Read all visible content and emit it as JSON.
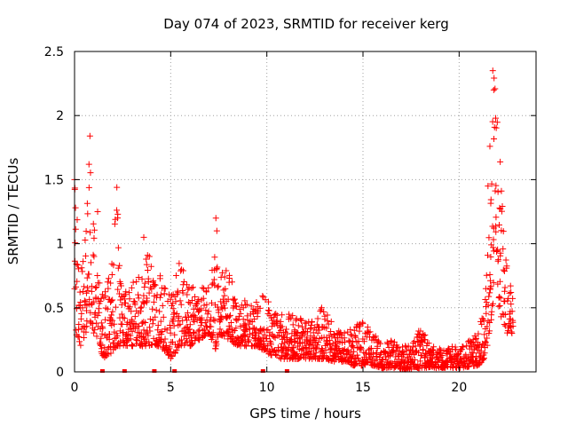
{
  "chart_data": {
    "type": "scatter",
    "title": "Day 074 of 2023, SRMTID for receiver kerg",
    "xlabel": "GPS time / hours",
    "ylabel": "SRMTID / TECUs",
    "xlim": [
      0,
      24
    ],
    "ylim": [
      0,
      2.5
    ],
    "x_ticks": [
      0,
      5,
      10,
      15,
      20
    ],
    "x_tick_labels": [
      "0",
      "5",
      "10",
      "15",
      "20"
    ],
    "y_ticks": [
      0,
      0.5,
      1,
      1.5,
      2,
      2.5
    ],
    "y_tick_labels": [
      "0",
      "0.5",
      "1",
      "1.5",
      "2",
      "2.5"
    ],
    "grid": true,
    "marker": "plus",
    "marker_color": "#ff0000",
    "series": [
      {
        "name": "SRMTID",
        "envelope": {
          "x": [
            0,
            0.05,
            0.3,
            0.6,
            0.75,
            0.8,
            1.0,
            1.3,
            1.5,
            2.0,
            2.2,
            2.5,
            3.0,
            3.5,
            3.8,
            4.2,
            4.5,
            5.0,
            5.5,
            6.0,
            6.5,
            7.0,
            7.3,
            7.5,
            8.0,
            8.5,
            9.0,
            9.5,
            10.0,
            10.5,
            11.0,
            11.5,
            12.0,
            12.5,
            12.8,
            13.0,
            13.5,
            14.0,
            14.5,
            15.0,
            15.5,
            16.0,
            16.5,
            17.0,
            17.5,
            18.0,
            18.5,
            19.0,
            19.5,
            20.0,
            20.5,
            21.0,
            21.3,
            21.6,
            21.8,
            22.0,
            22.2,
            22.5,
            22.8
          ],
          "low": [
            0.6,
            0.3,
            0.2,
            0.3,
            0.5,
            0.4,
            0.3,
            0.2,
            0.1,
            0.15,
            0.2,
            0.2,
            0.2,
            0.2,
            0.2,
            0.2,
            0.2,
            0.1,
            0.2,
            0.2,
            0.25,
            0.3,
            0.15,
            0.3,
            0.25,
            0.2,
            0.2,
            0.2,
            0.15,
            0.1,
            0.1,
            0.1,
            0.1,
            0.1,
            0.1,
            0.1,
            0.08,
            0.08,
            0.05,
            0.05,
            0.05,
            0.03,
            0.03,
            0.02,
            0.02,
            0.03,
            0.03,
            0.03,
            0.03,
            0.03,
            0.04,
            0.05,
            0.1,
            0.3,
            0.5,
            0.5,
            0.35,
            0.3,
            0.3
          ],
          "high": [
            1.5,
            1.5,
            0.8,
            1.2,
            1.6,
            1.84,
            1.2,
            0.7,
            0.6,
            0.9,
            1.44,
            0.6,
            0.7,
            0.8,
            1.0,
            0.7,
            0.8,
            0.6,
            0.9,
            0.7,
            0.65,
            0.7,
            1.2,
            0.8,
            0.8,
            0.6,
            0.55,
            0.6,
            0.6,
            0.5,
            0.45,
            0.45,
            0.4,
            0.4,
            0.5,
            0.5,
            0.35,
            0.3,
            0.35,
            0.4,
            0.3,
            0.25,
            0.25,
            0.22,
            0.2,
            0.35,
            0.22,
            0.18,
            0.2,
            0.2,
            0.25,
            0.35,
            0.7,
            1.5,
            2.35,
            2.0,
            1.5,
            0.8,
            0.6
          ]
        },
        "highlighted_points": [
          {
            "x": 0.0,
            "y": 1.5
          },
          {
            "x": 0.05,
            "y": 1.28
          },
          {
            "x": 0.8,
            "y": 1.84
          },
          {
            "x": 0.75,
            "y": 1.62
          },
          {
            "x": 1.2,
            "y": 1.25
          },
          {
            "x": 2.2,
            "y": 1.44
          },
          {
            "x": 2.25,
            "y": 1.23
          },
          {
            "x": 3.6,
            "y": 1.05
          },
          {
            "x": 7.35,
            "y": 1.2
          },
          {
            "x": 7.4,
            "y": 1.1
          },
          {
            "x": 12.85,
            "y": 0.5
          },
          {
            "x": 21.75,
            "y": 2.35
          },
          {
            "x": 21.8,
            "y": 2.2
          },
          {
            "x": 21.9,
            "y": 1.98
          },
          {
            "x": 21.6,
            "y": 1.76
          },
          {
            "x": 21.5,
            "y": 1.45
          }
        ]
      }
    ],
    "zero_markers_x": [
      1.45,
      2.6,
      4.15,
      5.2,
      9.8,
      11.05
    ]
  }
}
